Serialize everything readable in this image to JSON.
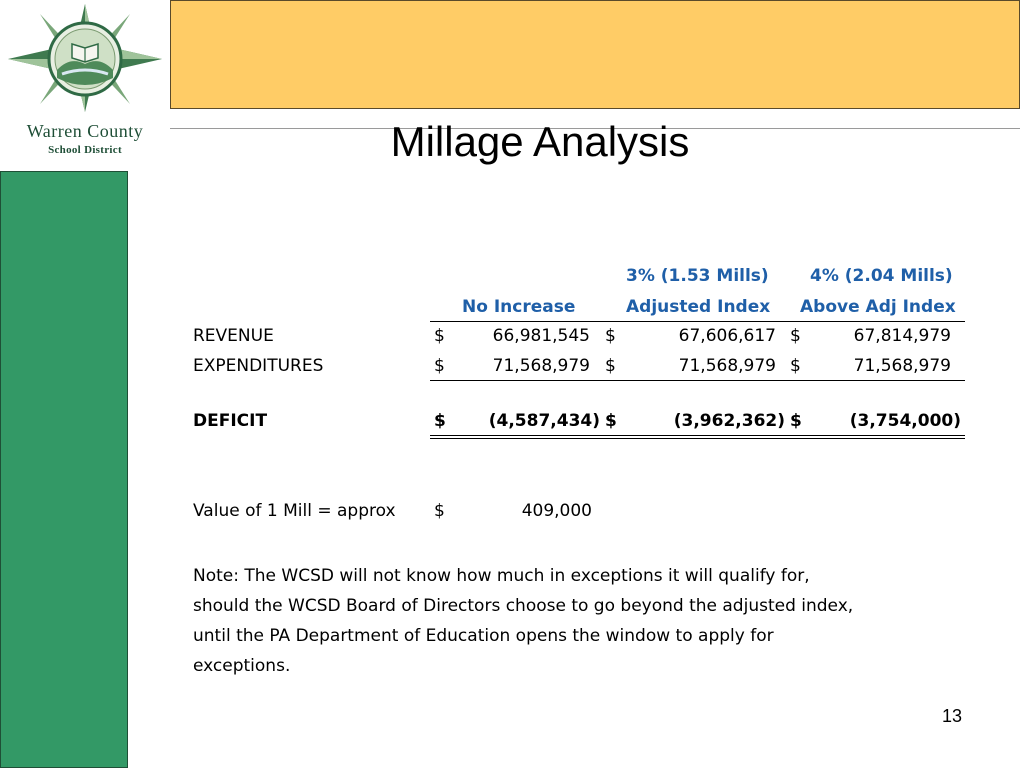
{
  "slide": {
    "title": "Millage Analysis",
    "page_number": "13",
    "colors": {
      "banner": "#ffcc66",
      "sidebar": "#339966",
      "header_text": "#1f5fa8",
      "logo_text": "#1e4e36"
    }
  },
  "logo": {
    "line1": "Warren County",
    "line2": "School District",
    "icon": "compass-star-emblem-icon"
  },
  "table": {
    "headers": {
      "col1_line2": "No Increase",
      "col2_line1": "3% (1.53 Mills)",
      "col2_line2": "Adjusted Index",
      "col3_line1": "4% (2.04 Mills)",
      "col3_line2": "Above Adj Index"
    },
    "rows": [
      {
        "label": "REVENUE",
        "c1": "$",
        "v1": "66,981,545",
        "c2": "$",
        "v2": "67,606,617",
        "c3": "$",
        "v3": "67,814,979"
      },
      {
        "label": "EXPENDITURES",
        "c1": "$",
        "v1": "71,568,979",
        "c2": "$",
        "v2": "71,568,979",
        "c3": "$",
        "v3": "71,568,979"
      }
    ],
    "deficit": {
      "label": "DEFICIT",
      "c1": "$",
      "v1": "(4,587,434)",
      "c2": "$",
      "v2": "(3,962,362)",
      "c3": "$",
      "v3": "(3,754,000)"
    },
    "mill_value": {
      "label": "Value of 1 Mill = approx",
      "currency": "$",
      "value": "409,000"
    }
  },
  "note": "Note:  The WCSD will not know how much in exceptions it will qualify for,\nshould the WCSD Board of Directors choose to go beyond the adjusted index,\nuntil the PA Department of Education opens the window to apply for\nexceptions."
}
